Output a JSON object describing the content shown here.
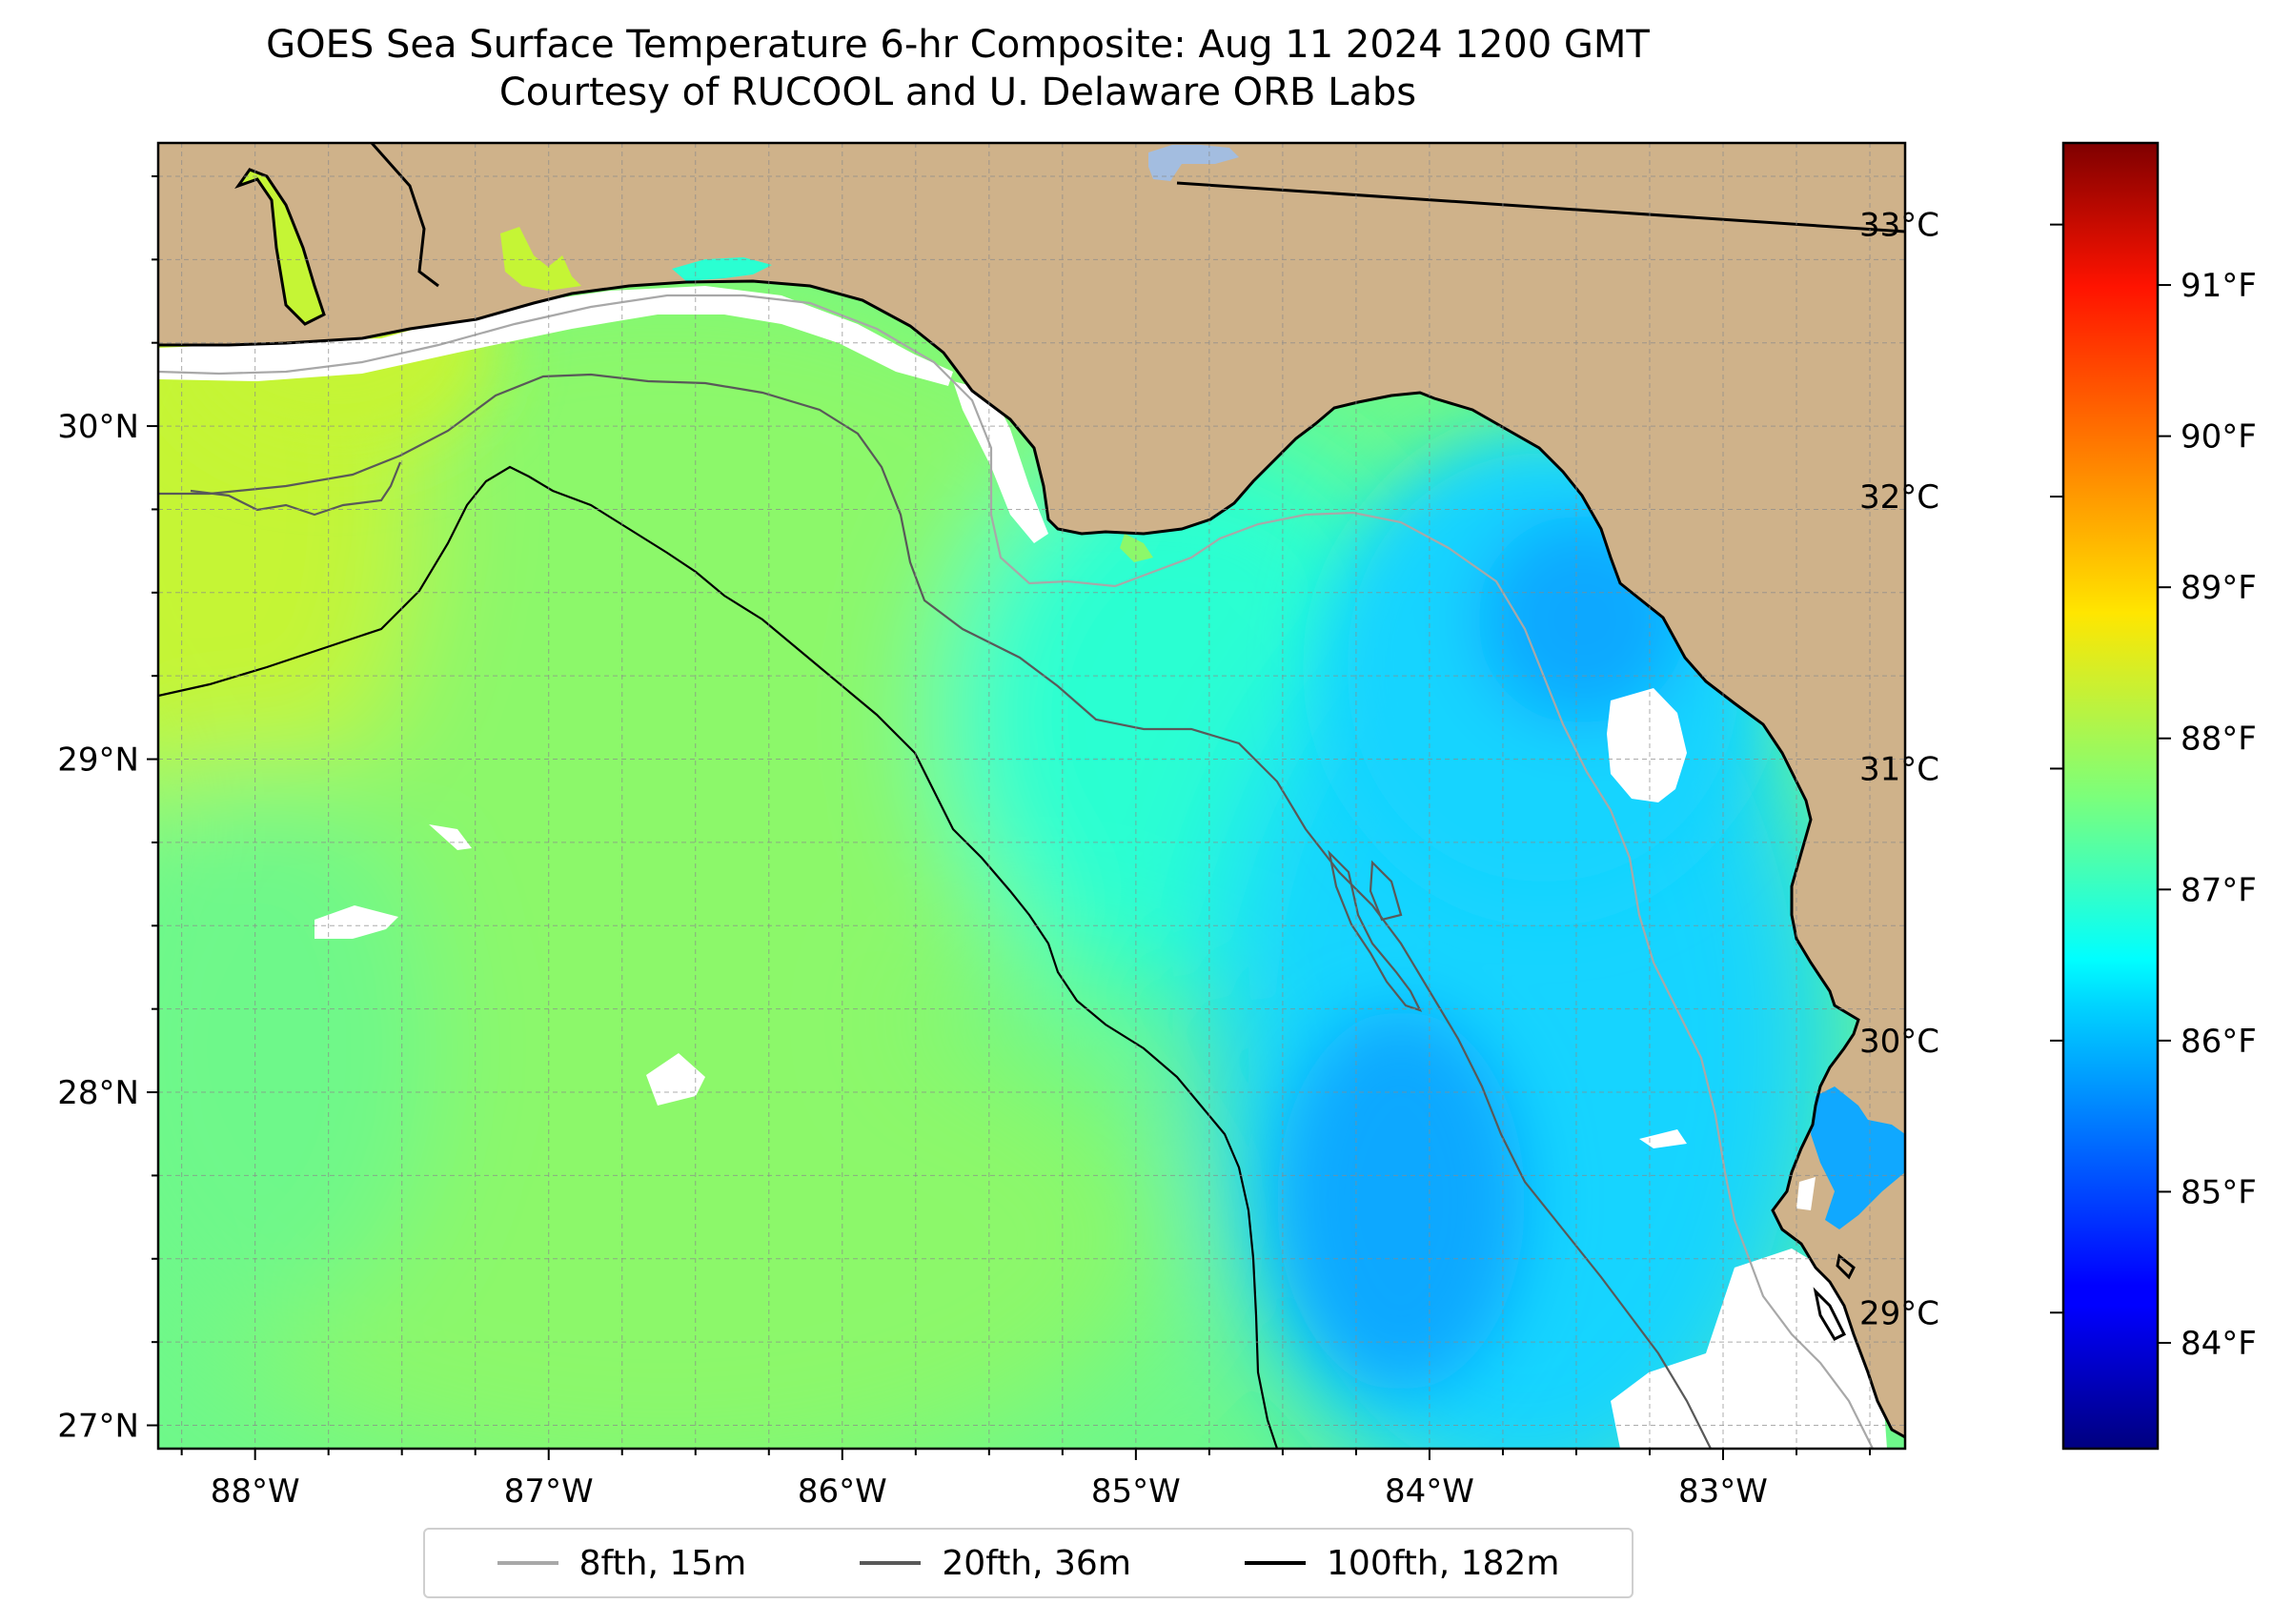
{
  "title": {
    "line1": "GOES Sea Surface Temperature 6-hr Composite: Aug 11 2024 1200 GMT",
    "line2": "Courtesy of RUCOOL and U. Delaware ORB Labs"
  },
  "map": {
    "extent": {
      "lon_min": -88.33,
      "lon_max": -82.38,
      "lat_min": 26.93,
      "lat_max": 30.85
    },
    "lat_ticks": [
      {
        "value": 30,
        "label": "30°N"
      },
      {
        "value": 29,
        "label": "29°N"
      },
      {
        "value": 28,
        "label": "28°N"
      },
      {
        "value": 27,
        "label": "27°N"
      }
    ],
    "lon_ticks": [
      {
        "value": -88,
        "label": "88°W"
      },
      {
        "value": -87,
        "label": "87°W"
      },
      {
        "value": -86,
        "label": "86°W"
      },
      {
        "value": -85,
        "label": "85°W"
      },
      {
        "value": -84,
        "label": "84°W"
      },
      {
        "value": -83,
        "label": "83°W"
      }
    ],
    "grid": "dashed every 0.25°",
    "colors": {
      "land": "#cfb28a",
      "coastline": "#000000",
      "no_data": "#ffffff",
      "lake": "#a3bde0"
    },
    "regions": {
      "west_warm": "#c5f535",
      "central_shelf": "#8cf86a",
      "open_gulf": "#6ef88a",
      "mid": "#2affd2",
      "east_cool": "#14d4ff",
      "coldest": "#10a8ff"
    }
  },
  "colorbar": {
    "colormap": "jet",
    "celsius_range": [
      28.5,
      33.3
    ],
    "celsius_ticks": [
      {
        "value": 33,
        "label": "33°C"
      },
      {
        "value": 32,
        "label": "32°C"
      },
      {
        "value": 31,
        "label": "31°C"
      },
      {
        "value": 30,
        "label": "30°C"
      },
      {
        "value": 29,
        "label": "29°C"
      }
    ],
    "fahrenheit_ticks": [
      {
        "value": 91,
        "label": "91°F"
      },
      {
        "value": 90,
        "label": "90°F"
      },
      {
        "value": 89,
        "label": "89°F"
      },
      {
        "value": 88,
        "label": "88°F"
      },
      {
        "value": 87,
        "label": "87°F"
      },
      {
        "value": 86,
        "label": "86°F"
      },
      {
        "value": 85,
        "label": "85°F"
      },
      {
        "value": 84,
        "label": "84°F"
      }
    ]
  },
  "legend": {
    "entries": [
      {
        "label": "8fth, 15m",
        "color": "#a8a8a8"
      },
      {
        "label": "20fth, 36m",
        "color": "#595959"
      },
      {
        "label": "100fth, 182m",
        "color": "#000000"
      }
    ]
  }
}
